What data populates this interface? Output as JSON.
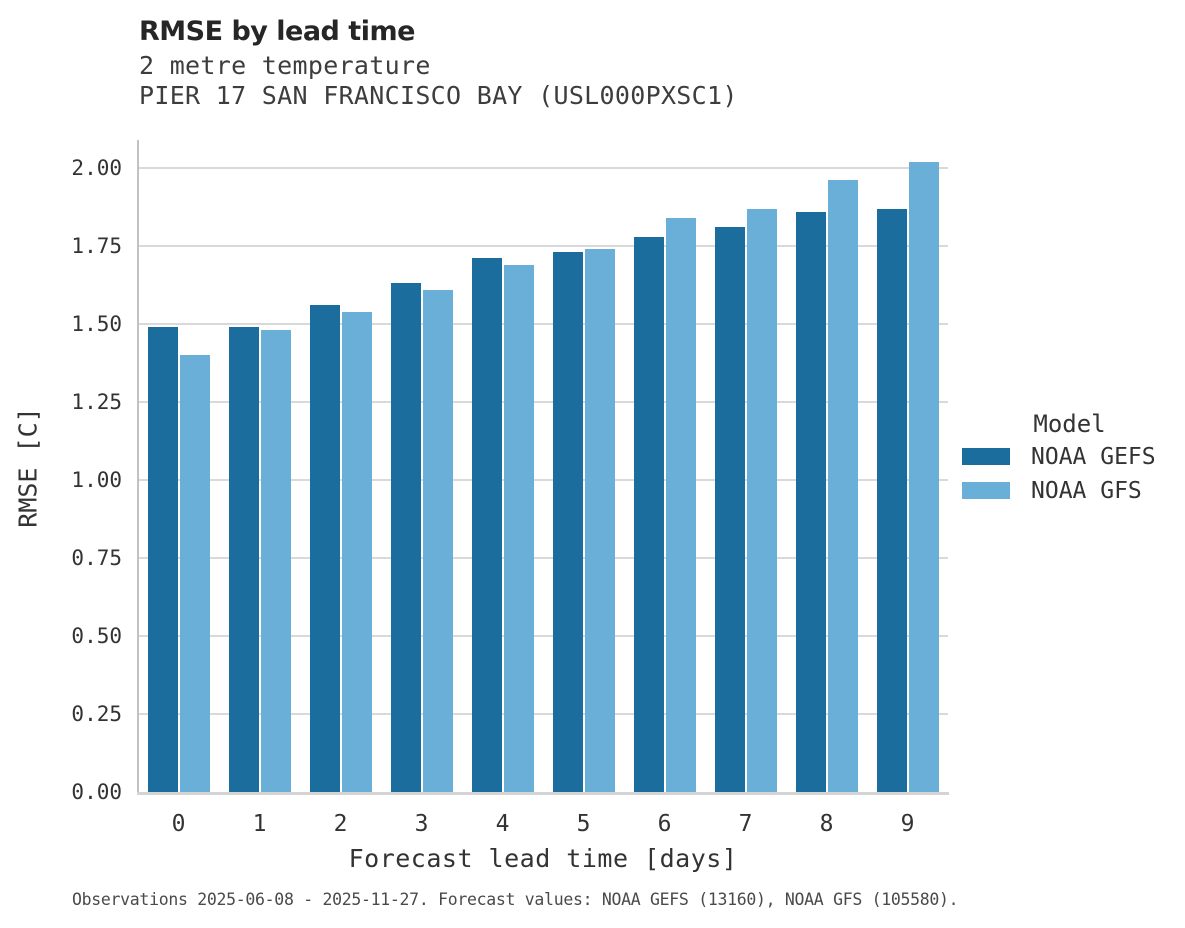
{
  "page": {
    "footnote": "Observations 2025-06-08 - 2025-11-27. Forecast values: NOAA GEFS (13160), NOAA GFS (105580)."
  },
  "chart_data": {
    "type": "bar",
    "title": "RMSE by lead time",
    "subtitle_line1": "2 metre temperature",
    "subtitle_line2": "PIER 17 SAN FRANCISCO BAY (USL000PXSC1)",
    "xlabel": "Forecast lead time [days]",
    "ylabel": "RMSE [C]",
    "categories": [
      "0",
      "1",
      "2",
      "3",
      "4",
      "5",
      "6",
      "7",
      "8",
      "9"
    ],
    "series": [
      {
        "name": "NOAA GEFS",
        "color": "#1a6d9c",
        "values": [
          1.49,
          1.49,
          1.56,
          1.63,
          1.71,
          1.73,
          1.78,
          1.81,
          1.86,
          1.87
        ]
      },
      {
        "name": "NOAA GFS",
        "color": "#69afd7",
        "values": [
          1.4,
          1.48,
          1.54,
          1.61,
          1.69,
          1.74,
          1.84,
          1.87,
          1.96,
          2.02
        ]
      }
    ],
    "ylim": [
      0,
      2.09
    ],
    "yticks": [
      "0.00",
      "0.25",
      "0.50",
      "0.75",
      "1.00",
      "1.25",
      "1.50",
      "1.75",
      "2.00"
    ],
    "grid": "horizontal",
    "legend": {
      "title": "Model",
      "position": "right"
    },
    "colors": {
      "gridline": "#d9d9d9",
      "left_spine": "#c2c2c2",
      "bottom_spine": "#d4d4d4",
      "text": "#333333"
    }
  }
}
